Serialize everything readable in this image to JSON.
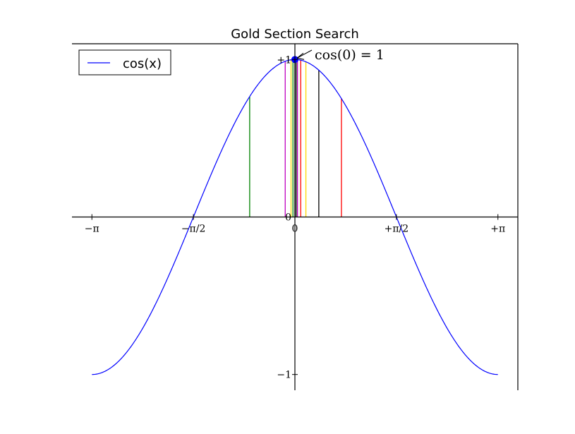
{
  "chart_data": {
    "type": "line",
    "title": "Gold Section Search",
    "xlabel": "",
    "ylabel": "",
    "xlim": [
      -3.45,
      3.45
    ],
    "ylim": [
      -1.1,
      1.1
    ],
    "grid": false,
    "legend_position": "top-left",
    "x_ticks": [
      {
        "value": -3.14159,
        "label": "−π"
      },
      {
        "value": -1.5708,
        "label": "−π/2"
      },
      {
        "value": 0,
        "label": "0"
      },
      {
        "value": 1.5708,
        "label": "+π/2"
      },
      {
        "value": 3.14159,
        "label": "+π"
      }
    ],
    "y_ticks": [
      {
        "value": 1,
        "label": "+1"
      },
      {
        "value": 0,
        "label": "0"
      },
      {
        "value": -1,
        "label": "−1"
      }
    ],
    "series": [
      {
        "name": "cos(x)",
        "function": "cos",
        "x_range": [
          -3.14159,
          3.14159
        ],
        "color": "#0000ff"
      }
    ],
    "search_lines": [
      {
        "x": -0.7,
        "color": "#008000"
      },
      {
        "x": -0.15,
        "color": "#bf00bf"
      },
      {
        "x": -0.06,
        "color": "#ffd700"
      },
      {
        "x": -0.03,
        "color": "#008000"
      },
      {
        "x": 0.0,
        "color": "#000000"
      },
      {
        "x": 0.02,
        "color": "#000000"
      },
      {
        "x": 0.04,
        "color": "#bf00bf"
      },
      {
        "x": 0.09,
        "color": "#ff0000"
      },
      {
        "x": 0.17,
        "color": "#ffd700"
      },
      {
        "x": 0.37,
        "color": "#000000"
      },
      {
        "x": 0.72,
        "color": "#ff0000"
      }
    ],
    "highlight_point": {
      "x": 0,
      "y": 1,
      "color": "#0000ff"
    },
    "annotation": {
      "text": "cos(0) = 1",
      "x": 0,
      "y": 1
    }
  }
}
